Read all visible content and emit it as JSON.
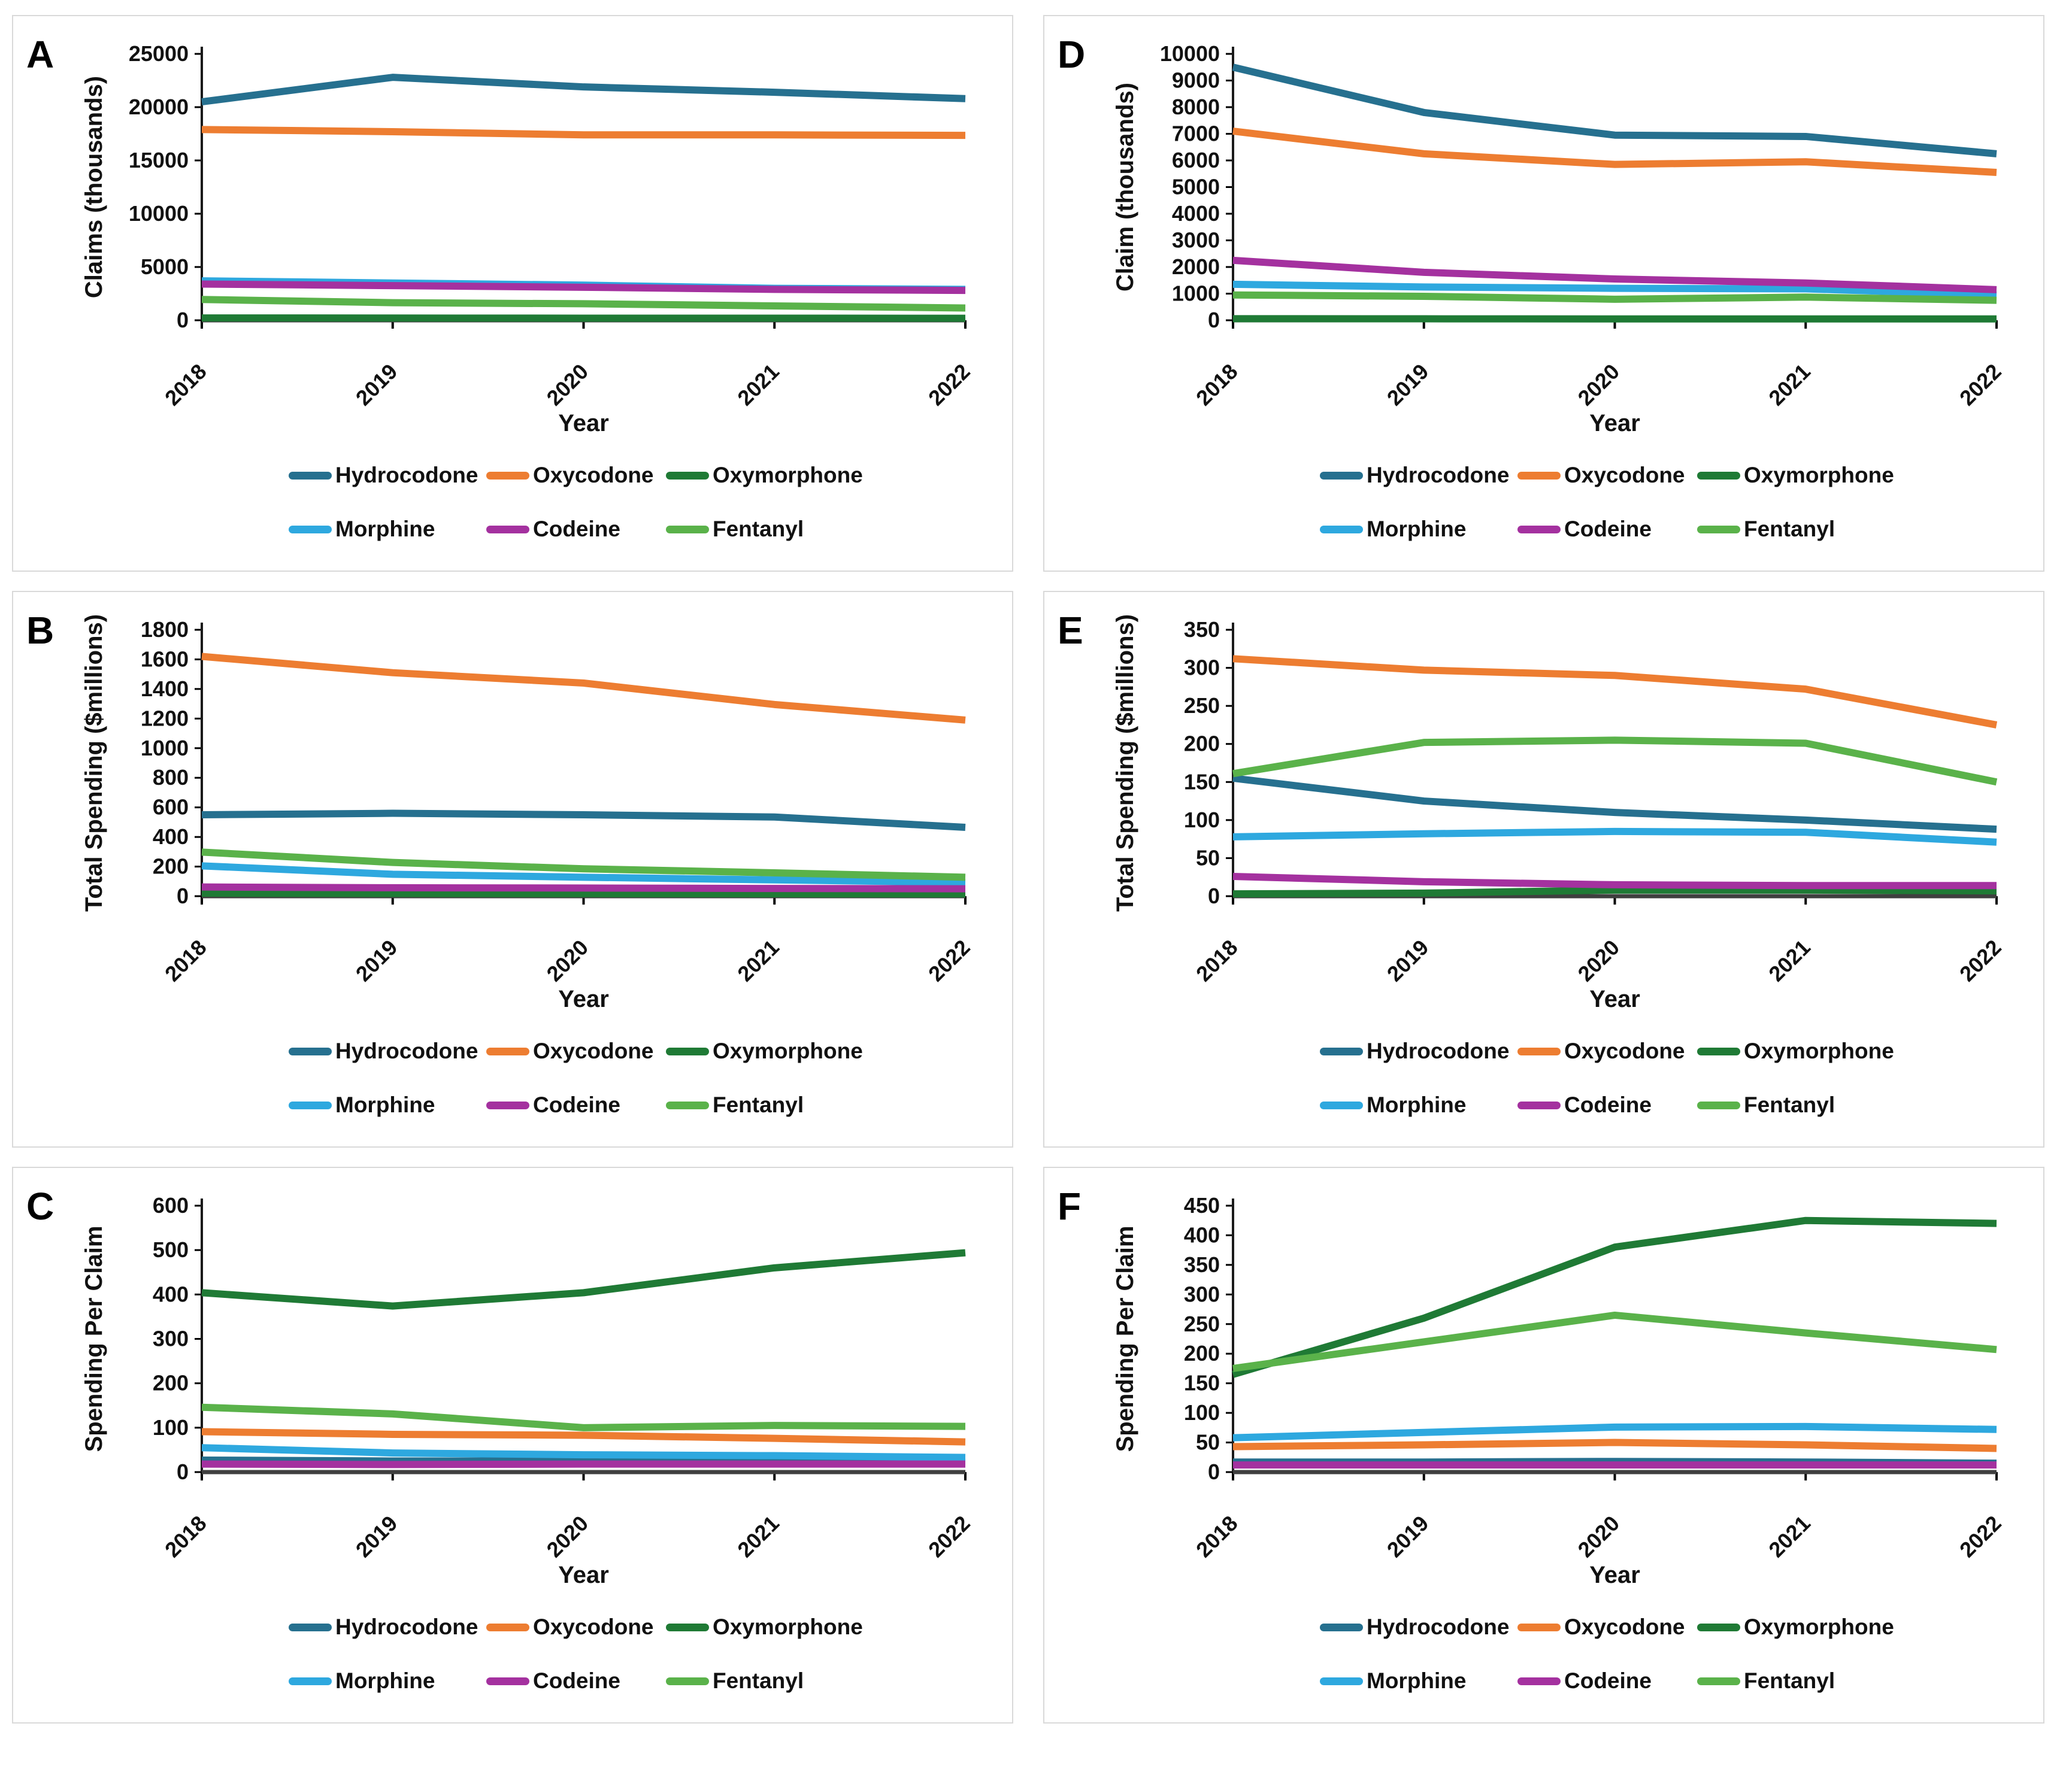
{
  "figure": {
    "x_axis_title": "Year",
    "years": [
      "2018",
      "2019",
      "2020",
      "2021",
      "2022"
    ],
    "series_names": [
      "Hydrocodone",
      "Oxycodone",
      "Oxymorphone",
      "Morphine",
      "Codeine",
      "Fentanyl"
    ],
    "series_colors": {
      "Hydrocodone": "#26708F",
      "Oxycodone": "#ED7D31",
      "Oxymorphone": "#1F7A35",
      "Morphine": "#2EA8DF",
      "Codeine": "#A4319F",
      "Fentanyl": "#5AB24A"
    }
  },
  "chart_data": [
    {
      "type": "line",
      "panel_label": "A",
      "xlabel": "Year",
      "ylabel": "Claims (thousands)",
      "ylim": [
        0,
        25000
      ],
      "ytick_step": 5000,
      "grid": false,
      "legend_position": "bottom",
      "x": [
        "2018",
        "2019",
        "2020",
        "2021",
        "2022"
      ],
      "series": [
        {
          "name": "Hydrocodone",
          "color": "#26708F",
          "values": [
            20500,
            22800,
            21900,
            21400,
            20800
          ]
        },
        {
          "name": "Oxycodone",
          "color": "#ED7D31",
          "values": [
            17900,
            17700,
            17400,
            17400,
            17350
          ]
        },
        {
          "name": "Oxymorphone",
          "color": "#1F7A35",
          "values": [
            220,
            210,
            200,
            200,
            190
          ]
        },
        {
          "name": "Morphine",
          "color": "#2EA8DF",
          "values": [
            3700,
            3500,
            3300,
            3000,
            2900
          ]
        },
        {
          "name": "Codeine",
          "color": "#A4319F",
          "values": [
            3400,
            3250,
            3100,
            2900,
            2800
          ]
        },
        {
          "name": "Fentanyl",
          "color": "#5AB24A",
          "values": [
            1950,
            1650,
            1550,
            1350,
            1150
          ]
        }
      ]
    },
    {
      "type": "line",
      "panel_label": "D",
      "xlabel": "Year",
      "ylabel": "Claim (thousands)",
      "ylim": [
        0,
        10000
      ],
      "ytick_step": 1000,
      "grid": false,
      "legend_position": "bottom",
      "x": [
        "2018",
        "2019",
        "2020",
        "2021",
        "2022"
      ],
      "series": [
        {
          "name": "Hydrocodone",
          "color": "#26708F",
          "values": [
            9500,
            7800,
            6950,
            6900,
            6250
          ]
        },
        {
          "name": "Oxycodone",
          "color": "#ED7D31",
          "values": [
            7100,
            6250,
            5850,
            5950,
            5550
          ]
        },
        {
          "name": "Oxymorphone",
          "color": "#1F7A35",
          "values": [
            60,
            55,
            50,
            50,
            50
          ]
        },
        {
          "name": "Morphine",
          "color": "#2EA8DF",
          "values": [
            1350,
            1250,
            1200,
            1180,
            950
          ]
        },
        {
          "name": "Codeine",
          "color": "#A4319F",
          "values": [
            2250,
            1800,
            1550,
            1400,
            1150
          ]
        },
        {
          "name": "Fentanyl",
          "color": "#5AB24A",
          "values": [
            950,
            900,
            790,
            870,
            750
          ]
        }
      ]
    },
    {
      "type": "line",
      "panel_label": "B",
      "xlabel": "Year",
      "ylabel": "Total Spending ($millions)",
      "ylim": [
        0,
        1800
      ],
      "ytick_step": 200,
      "grid": false,
      "legend_position": "bottom",
      "x": [
        "2018",
        "2019",
        "2020",
        "2021",
        "2022"
      ],
      "series": [
        {
          "name": "Hydrocodone",
          "color": "#26708F",
          "values": [
            550,
            560,
            550,
            535,
            465
          ]
        },
        {
          "name": "Oxycodone",
          "color": "#ED7D31",
          "values": [
            1620,
            1510,
            1440,
            1295,
            1190
          ]
        },
        {
          "name": "Oxymorphone",
          "color": "#1F7A35",
          "values": [
            20,
            18,
            17,
            16,
            15
          ]
        },
        {
          "name": "Morphine",
          "color": "#2EA8DF",
          "values": [
            205,
            148,
            128,
            110,
            93
          ]
        },
        {
          "name": "Codeine",
          "color": "#A4319F",
          "values": [
            62,
            57,
            55,
            52,
            50
          ]
        },
        {
          "name": "Fentanyl",
          "color": "#5AB24A",
          "values": [
            298,
            228,
            185,
            158,
            128
          ]
        }
      ]
    },
    {
      "type": "line",
      "panel_label": "E",
      "xlabel": "Year",
      "ylabel": "Total Spending ($millions)",
      "ylim": [
        0,
        350
      ],
      "ytick_step": 50,
      "grid": false,
      "legend_position": "bottom",
      "x": [
        "2018",
        "2019",
        "2020",
        "2021",
        "2022"
      ],
      "series": [
        {
          "name": "Hydrocodone",
          "color": "#26708F",
          "values": [
            155,
            125,
            110,
            100,
            88
          ]
        },
        {
          "name": "Oxycodone",
          "color": "#ED7D31",
          "values": [
            312,
            297,
            290,
            272,
            225
          ]
        },
        {
          "name": "Oxymorphone",
          "color": "#1F7A35",
          "values": [
            3,
            4,
            8,
            8,
            7
          ]
        },
        {
          "name": "Morphine",
          "color": "#2EA8DF",
          "values": [
            78,
            82,
            85,
            84,
            71
          ]
        },
        {
          "name": "Codeine",
          "color": "#A4319F",
          "values": [
            26,
            19,
            15,
            14,
            14
          ]
        },
        {
          "name": "Fentanyl",
          "color": "#5AB24A",
          "values": [
            161,
            202,
            205,
            201,
            150
          ]
        }
      ]
    },
    {
      "type": "line",
      "panel_label": "C",
      "xlabel": "Year",
      "ylabel": "Spending Per Claim",
      "ylim": [
        0,
        600
      ],
      "ytick_step": 100,
      "grid": false,
      "legend_position": "bottom",
      "x": [
        "2018",
        "2019",
        "2020",
        "2021",
        "2022"
      ],
      "series": [
        {
          "name": "Hydrocodone",
          "color": "#26708F",
          "values": [
            27,
            25,
            25,
            25,
            22
          ]
        },
        {
          "name": "Oxycodone",
          "color": "#ED7D31",
          "values": [
            91,
            85,
            83,
            76,
            68
          ]
        },
        {
          "name": "Oxymorphone",
          "color": "#1F7A35",
          "values": [
            404,
            374,
            404,
            460,
            494
          ]
        },
        {
          "name": "Morphine",
          "color": "#2EA8DF",
          "values": [
            55,
            43,
            39,
            37,
            33
          ]
        },
        {
          "name": "Codeine",
          "color": "#A4319F",
          "values": [
            18,
            17,
            18,
            18,
            18
          ]
        },
        {
          "name": "Fentanyl",
          "color": "#5AB24A",
          "values": [
            146,
            131,
            100,
            105,
            103
          ]
        }
      ]
    },
    {
      "type": "line",
      "panel_label": "F",
      "xlabel": "Year",
      "ylabel": "Spending Per Claim",
      "ylim": [
        0,
        450
      ],
      "ytick_step": 50,
      "grid": false,
      "legend_position": "bottom",
      "x": [
        "2018",
        "2019",
        "2020",
        "2021",
        "2022"
      ],
      "series": [
        {
          "name": "Hydrocodone",
          "color": "#26708F",
          "values": [
            17,
            17,
            18,
            17,
            15
          ]
        },
        {
          "name": "Oxycodone",
          "color": "#ED7D31",
          "values": [
            43,
            46,
            50,
            46,
            40
          ]
        },
        {
          "name": "Oxymorphone",
          "color": "#1F7A35",
          "values": [
            165,
            260,
            380,
            425,
            420
          ]
        },
        {
          "name": "Morphine",
          "color": "#2EA8DF",
          "values": [
            58,
            67,
            76,
            77,
            72
          ]
        },
        {
          "name": "Codeine",
          "color": "#A4319F",
          "values": [
            12,
            12,
            12,
            12,
            12
          ]
        },
        {
          "name": "Fentanyl",
          "color": "#5AB24A",
          "values": [
            175,
            220,
            265,
            235,
            207
          ]
        }
      ]
    }
  ]
}
